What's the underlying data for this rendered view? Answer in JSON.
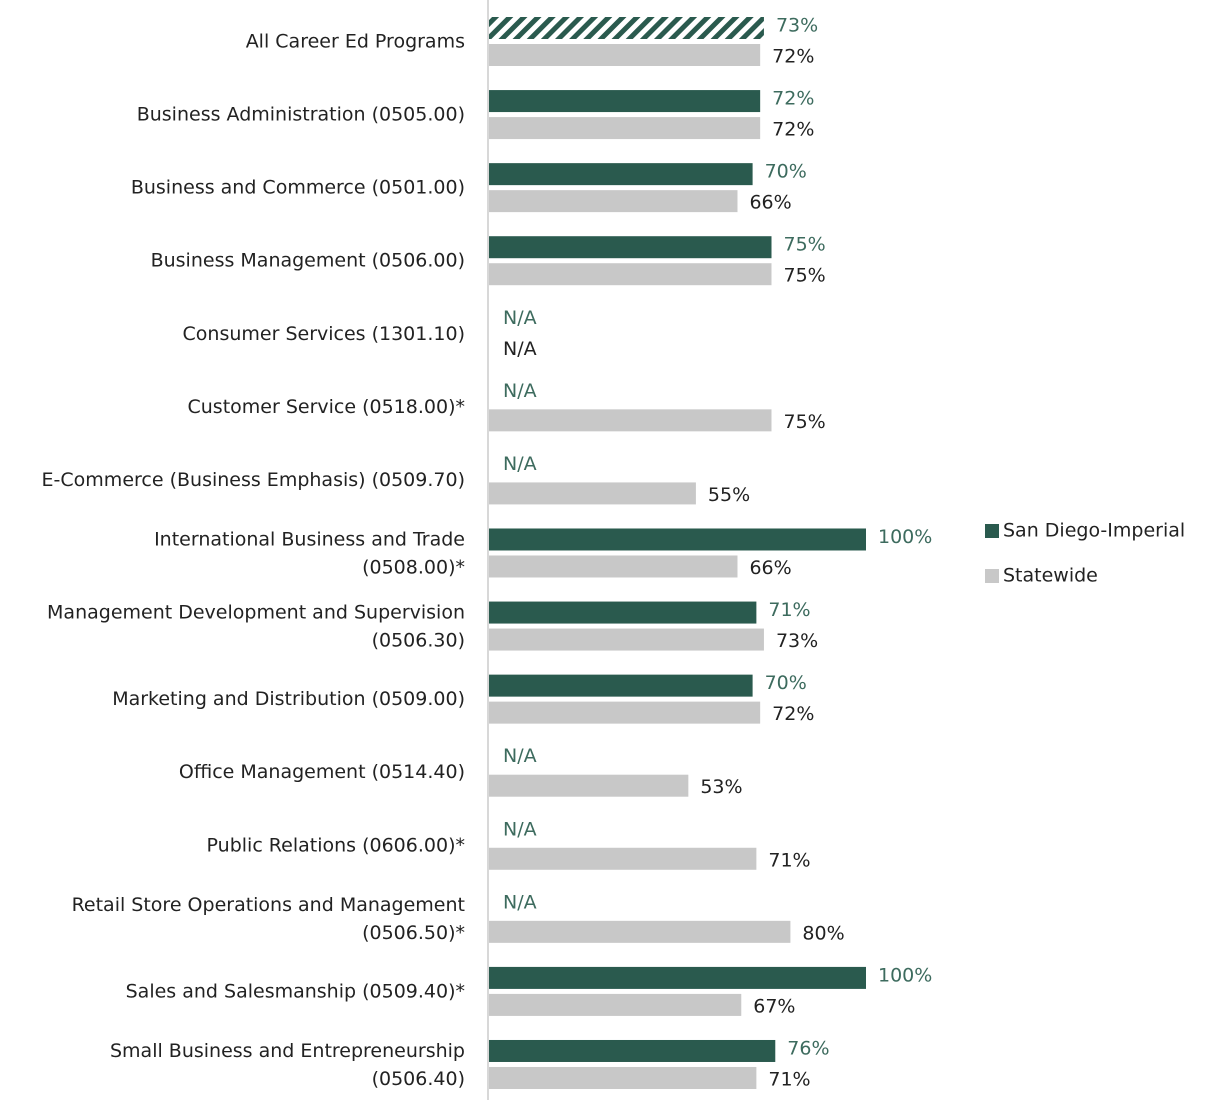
{
  "chart_data": {
    "type": "hbar",
    "categories": [
      "All Career Ed Programs",
      "Business Administration (0505.00)",
      "Business and Commerce (0501.00)",
      "Business Management (0506.00)",
      "Consumer Services (1301.10)",
      "Customer Service (0518.00)*",
      "E-Commerce (Business Emphasis) (0509.70)",
      "International Business and Trade\n(0508.00)*",
      "Management Development and Supervision\n(0506.30)",
      "Marketing and Distribution (0509.00)",
      "Office Management (0514.40)",
      "Public Relations (0606.00)*",
      "Retail Store Operations and Management\n(0506.50)*",
      "Sales and Salesmanship (0509.40)*",
      "Small Business and Entrepreneurship\n(0506.40)"
    ],
    "series": [
      {
        "name": "San Diego-Imperial",
        "color": "#2a5a4e",
        "label_color": "#3d6b5e",
        "values": [
          73,
          72,
          70,
          75,
          null,
          null,
          null,
          100,
          71,
          70,
          null,
          null,
          null,
          100,
          76
        ],
        "value_labels": [
          "73%",
          "72%",
          "70%",
          "75%",
          "N/A",
          "N/A",
          "N/A",
          "100%",
          "71%",
          "70%",
          "N/A",
          "N/A",
          "N/A",
          "100%",
          "76%"
        ],
        "hatched_index": 0
      },
      {
        "name": "Statewide",
        "color": "#c8c8c8",
        "label_color": "#222222",
        "values": [
          72,
          72,
          66,
          75,
          null,
          75,
          55,
          66,
          73,
          72,
          53,
          71,
          80,
          67,
          71
        ],
        "value_labels": [
          "72%",
          "72%",
          "66%",
          "75%",
          "N/A",
          "75%",
          "55%",
          "66%",
          "73%",
          "72%",
          "53%",
          "71%",
          "80%",
          "67%",
          "71%"
        ]
      }
    ],
    "xlim": [
      0,
      100
    ],
    "legend": "right"
  }
}
